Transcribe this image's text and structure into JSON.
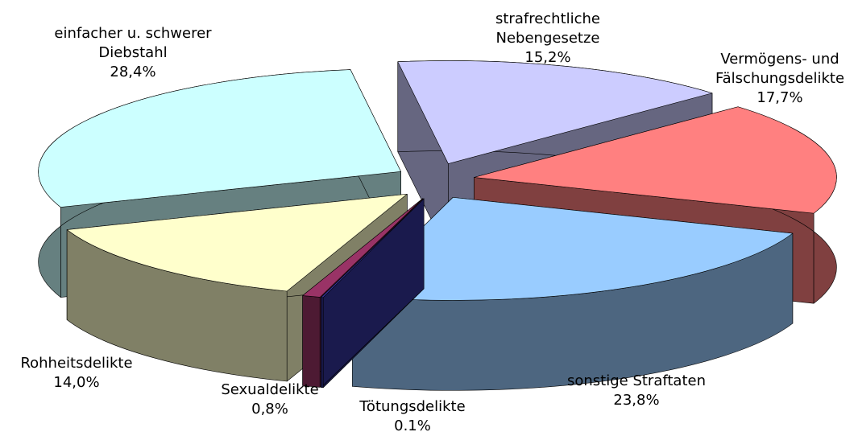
{
  "chart_data": {
    "type": "pie",
    "categories": [
      "strafrechtliche Nebengesetze",
      "Vermögens- und Fälschungsdelikte",
      "sonstige Straftaten",
      "Tötungsdelikte",
      "Sexualdelikte",
      "Rohheitsdelikte",
      "einfacher u. schwerer Diebstahl"
    ],
    "values": [
      15.2,
      17.7,
      23.8,
      0.1,
      0.8,
      14.0,
      28.4
    ],
    "value_labels": [
      "15,2%",
      "17,7%",
      "23,8%",
      "0.1%",
      "0,8%",
      "14,0%",
      "28,4%"
    ],
    "colors": [
      "#ccccff",
      "#ff8080",
      "#99ccff",
      "#333399",
      "#993366",
      "#ffffcc",
      "#ccffff"
    ]
  }
}
